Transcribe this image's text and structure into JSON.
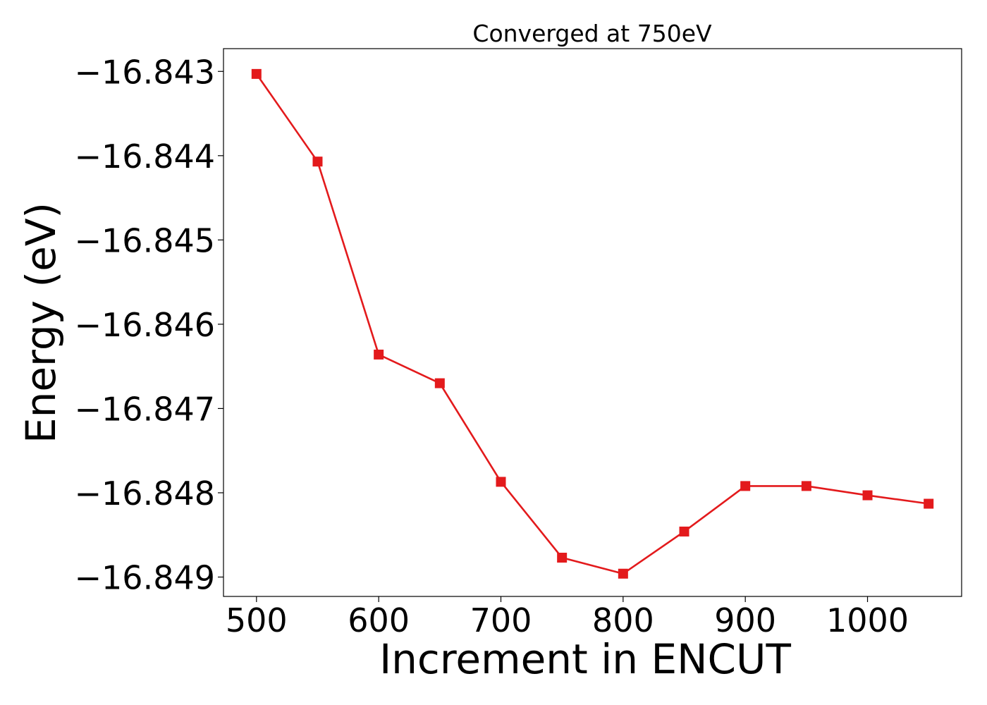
{
  "chart_data": {
    "type": "line",
    "title": "Converged at 750eV",
    "xlabel": "Increment in ENCUT",
    "ylabel": "Energy (eV)",
    "x": [
      500,
      550,
      600,
      650,
      700,
      750,
      800,
      850,
      900,
      950,
      1000,
      1050
    ],
    "series": [
      {
        "values": [
          -16.84303,
          -16.84407,
          -16.84636,
          -16.8467,
          -16.84787,
          -16.84877,
          -16.84896,
          -16.84846,
          -16.84792,
          -16.84792,
          -16.84803,
          -16.84813
        ],
        "color": "#e31a1c",
        "marker": "square"
      }
    ],
    "xticks": [
      500,
      600,
      700,
      800,
      900,
      1000
    ],
    "xtick_labels": [
      "500",
      "600",
      "700",
      "800",
      "900",
      "1000"
    ],
    "yticks": [
      -16.849,
      -16.848,
      -16.847,
      -16.846,
      -16.845,
      -16.844,
      -16.843
    ],
    "ytick_labels": [
      "−16.849",
      "−16.848",
      "−16.847",
      "−16.846",
      "−16.845",
      "−16.844",
      "−16.843"
    ],
    "xlim": [
      473,
      1077
    ],
    "ylim": [
      -16.84923,
      -16.84273
    ],
    "grid": false,
    "legend": "none"
  }
}
